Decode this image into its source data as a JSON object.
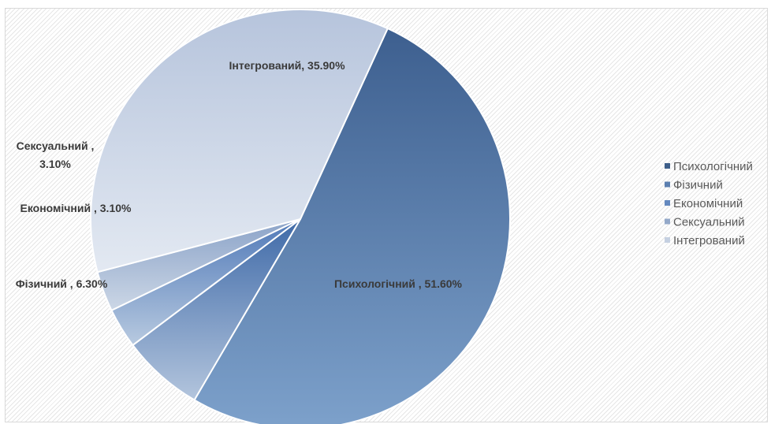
{
  "chart_data": {
    "type": "pie",
    "title": "",
    "categories": [
      "Психологічний",
      "Фізичний",
      "Економічний",
      "Сексуальний",
      "Інтегрований"
    ],
    "values": [
      51.6,
      6.3,
      3.1,
      3.1,
      35.9
    ],
    "unit": "%",
    "data_labels": [
      [
        "Психологічний , 51.60%"
      ],
      [
        "Фізичний , 6.30%"
      ],
      [
        "Економічний , 3.10%"
      ],
      [
        "Сексуальний ,",
        "3.10%"
      ],
      [
        "Інтегрований, 35.90%"
      ]
    ],
    "legend": {
      "position": "right",
      "entries": [
        "Психологічний",
        "Фізичний",
        "Економічний",
        "Сексуальний",
        "Інтегрований"
      ]
    },
    "colors": {
      "Психологічний": [
        "#3d5f8f",
        "#7da1cb"
      ],
      "Фізичний": [
        "#3f6aa8",
        "#b3c5dd"
      ],
      "Економічний": [
        "#5079b8",
        "#b8cae0"
      ],
      "Сексуальний": [
        "#8ba3c8",
        "#ccd7e6"
      ],
      "Інтегрований": [
        "#b6c4dc",
        "#e3e9f2"
      ]
    },
    "legend_marker_colors": [
      "#3e5f8a",
      "#5b7fb0",
      "#6489bf",
      "#94a9c9",
      "#c5d0e1"
    ],
    "start_angle_deg": 65.4,
    "direction": "clockwise"
  }
}
